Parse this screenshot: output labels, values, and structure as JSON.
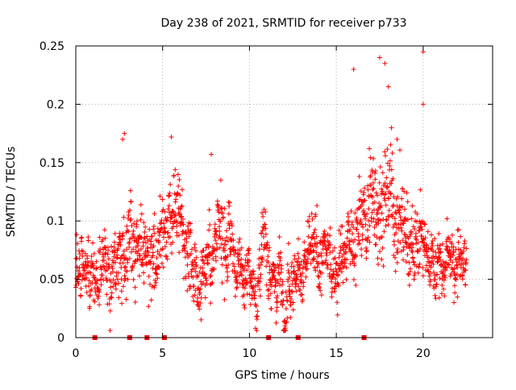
{
  "chart_data": {
    "type": "scatter",
    "title": "Day 238 of 2021, SRMTID for receiver p733",
    "xlabel": "GPS time / hours",
    "ylabel": "SRMTID / TECUs",
    "xlim": [
      0,
      24
    ],
    "ylim": [
      0,
      0.25
    ],
    "xticks": [
      0,
      5,
      10,
      15,
      20
    ],
    "yticks": [
      0,
      0.05,
      0.1,
      0.15,
      0.2,
      0.25
    ],
    "xtick_labels": [
      "0",
      "5",
      "10",
      "15",
      "20"
    ],
    "ytick_labels": [
      "0",
      "0.05",
      "0.1",
      "0.15",
      "0.2",
      "0.25"
    ],
    "grid": true,
    "marker": "+",
    "color": "#ff0000",
    "x_data_extent": [
      0,
      22.5
    ],
    "base_profile": [
      [
        0,
        0.06
      ],
      [
        1,
        0.06
      ],
      [
        2,
        0.065
      ],
      [
        2.5,
        0.085
      ],
      [
        3,
        0.08
      ],
      [
        4,
        0.07
      ],
      [
        4.8,
        0.095
      ],
      [
        5.5,
        0.08
      ],
      [
        6,
        0.095
      ],
      [
        7,
        0.065
      ],
      [
        8,
        0.075
      ],
      [
        8.8,
        0.085
      ],
      [
        9.5,
        0.05
      ],
      [
        10,
        0.045
      ],
      [
        11,
        0.065
      ],
      [
        12,
        0.055
      ],
      [
        13,
        0.06
      ],
      [
        14,
        0.07
      ],
      [
        15,
        0.06
      ],
      [
        15.5,
        0.065
      ],
      [
        16,
        0.08
      ],
      [
        17,
        0.115
      ],
      [
        18,
        0.12
      ],
      [
        19,
        0.095
      ],
      [
        20,
        0.075
      ],
      [
        21,
        0.06
      ],
      [
        22.5,
        0.06
      ]
    ],
    "notable_points": [
      [
        2.7,
        0.17
      ],
      [
        2.8,
        0.175
      ],
      [
        5.5,
        0.172
      ],
      [
        7.8,
        0.157
      ],
      [
        16.0,
        0.23
      ],
      [
        17.5,
        0.24
      ],
      [
        17.8,
        0.235
      ],
      [
        18.0,
        0.215
      ],
      [
        20.0,
        0.245
      ],
      [
        20.0,
        0.2
      ],
      [
        18.5,
        0.17
      ]
    ],
    "zero_markers_x": [
      1.1,
      3.1,
      4.1,
      5.1,
      11.1,
      12.8,
      16.6
    ]
  }
}
